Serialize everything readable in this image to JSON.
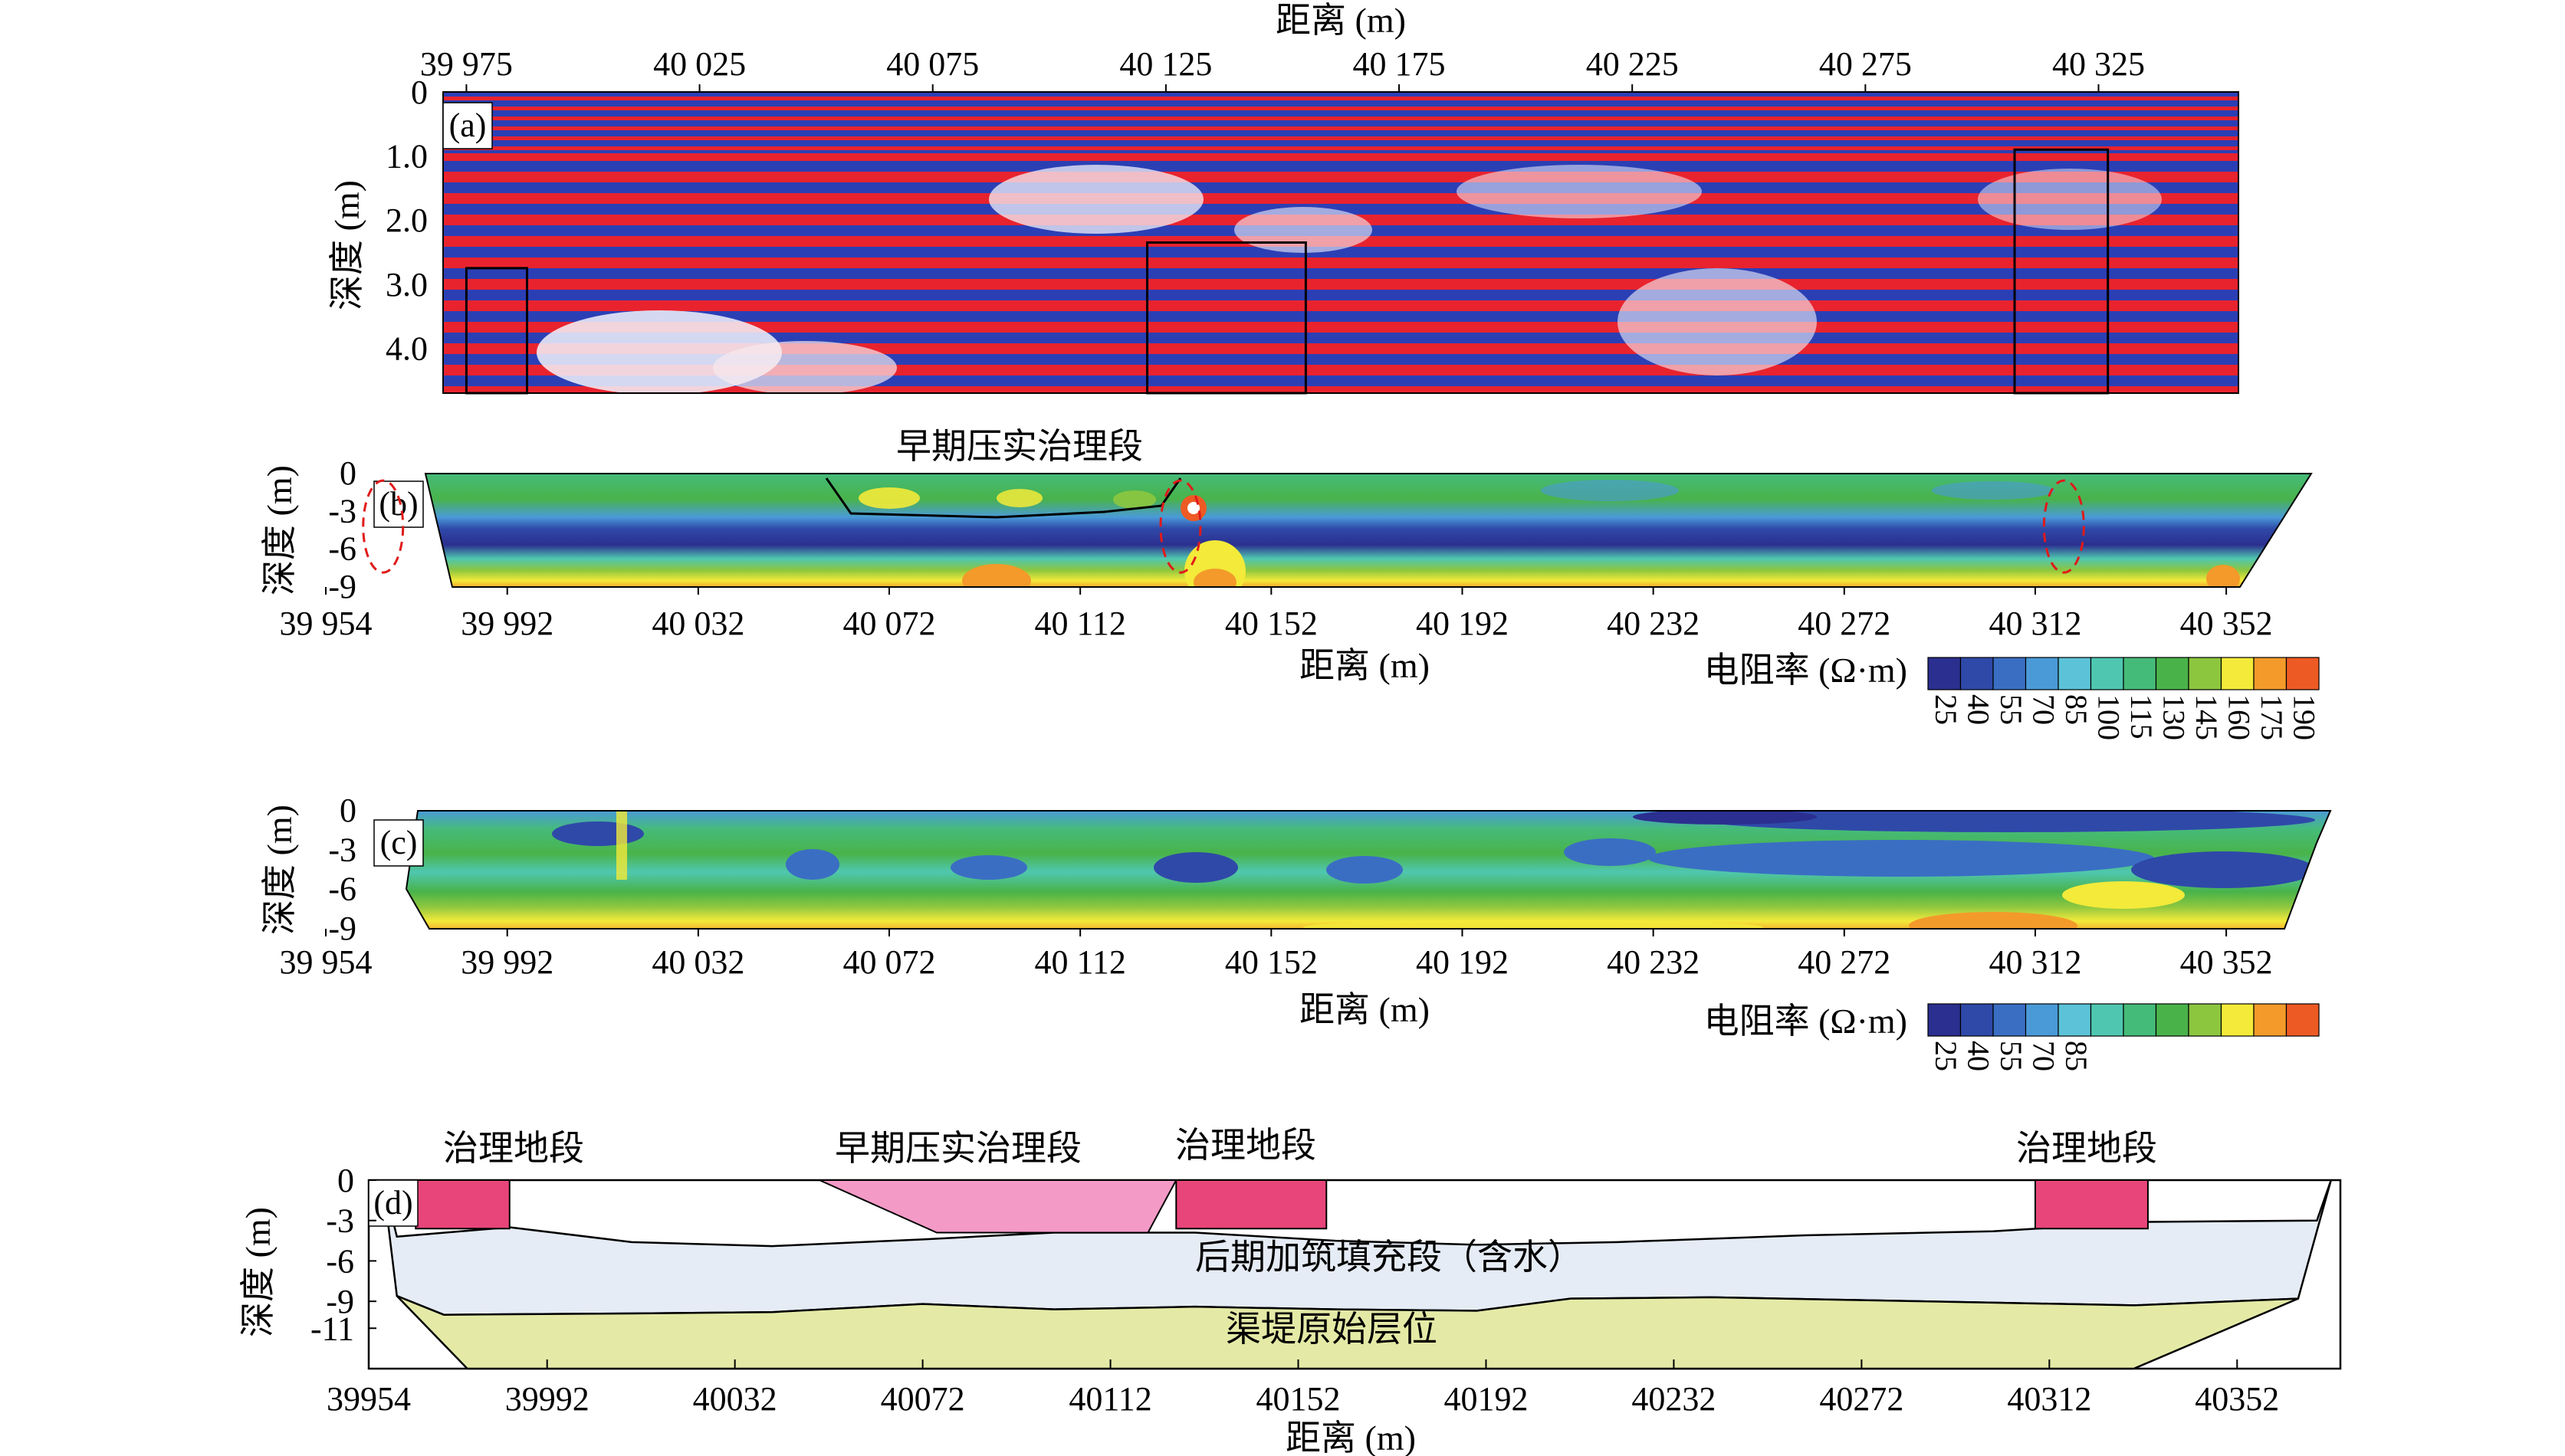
{
  "gpr": {
    "panel_label": "(a)",
    "x_title": "距离 (m)",
    "y_title": "深度 (m)",
    "x_ticks": [
      "39 975",
      "40 025",
      "40 075",
      "40 125",
      "40 175",
      "40 225",
      "40 275",
      "40 325"
    ],
    "x_tick_values": [
      39975,
      40025,
      40075,
      40125,
      40175,
      40225,
      40275,
      40325
    ],
    "y_ticks": [
      "0",
      "1.0",
      "2.0",
      "3.0",
      "4.0"
    ],
    "y_tick_values": [
      0,
      1,
      2,
      3,
      4
    ],
    "xlim": [
      39970,
      40355
    ],
    "ylim": [
      0,
      4.7
    ],
    "colors": {
      "positive": "#e8232e",
      "negative": "#2b3fb5"
    },
    "anomaly_boxes": [
      {
        "x0": 39975,
        "x1": 39988,
        "y0": 2.75,
        "y1": 4.7
      },
      {
        "x0": 40121,
        "x1": 40155,
        "y0": 2.35,
        "y1": 4.7
      },
      {
        "x0": 40307,
        "x1": 40327,
        "y0": 0.9,
        "y1": 4.7
      }
    ]
  },
  "ert1": {
    "panel_label": "(b)",
    "annotation": "早期压实治理段",
    "x_title": "距离 (m)",
    "y_title": "深度 (m)",
    "x_ticks": [
      "39 954",
      "39 992",
      "40 032",
      "40 072",
      "40 112",
      "40 152",
      "40 192",
      "40 232",
      "40 272",
      "40 312",
      "40 352"
    ],
    "x_tick_values": [
      39954,
      39992,
      40032,
      40072,
      40112,
      40152,
      40192,
      40232,
      40272,
      40312,
      40352
    ],
    "y_ticks": [
      "0",
      "-3",
      "-6",
      "-9"
    ],
    "y_tick_values": [
      0,
      -3,
      -6,
      -9
    ],
    "xlim": [
      39954,
      40369
    ],
    "ylim": [
      -9,
      0
    ],
    "colorbar_title": "电阻率 (Ω·m)",
    "colorbar_labels": [
      "25",
      "40",
      "55",
      "70",
      "85",
      "100",
      "115",
      "130",
      "145",
      "160",
      "175",
      "190"
    ],
    "colorbar_colors": [
      "#2b2f8f",
      "#2f49a8",
      "#3a6ec3",
      "#4a9ad8",
      "#5cc2d8",
      "#4fc7b0",
      "#45bb7a",
      "#49b34a",
      "#8cc63f",
      "#f3ea3a",
      "#f39a2a",
      "#ee5a24"
    ],
    "ellipses": [
      {
        "x": 39966,
        "y": -4.2
      },
      {
        "x": 40133,
        "y": -4.2
      },
      {
        "x": 40318,
        "y": -4.2
      }
    ]
  },
  "ert2": {
    "panel_label": "(c)",
    "x_title": "距离 (m)",
    "y_title": "深度 (m)",
    "x_ticks": [
      "39 954",
      "39 992",
      "40 032",
      "40 072",
      "40 112",
      "40 152",
      "40 192",
      "40 232",
      "40 272",
      "40 312",
      "40 352"
    ],
    "x_tick_values": [
      39954,
      39992,
      40032,
      40072,
      40112,
      40152,
      40192,
      40232,
      40272,
      40312,
      40352
    ],
    "y_ticks": [
      "0",
      "-3",
      "-6",
      "-9"
    ],
    "y_tick_values": [
      0,
      -3,
      -6,
      -9
    ],
    "xlim": [
      39954,
      40369
    ],
    "ylim": [
      -9,
      0
    ],
    "colorbar_title": "电阻率 (Ω·m)",
    "colorbar_labels": [
      "25",
      "40",
      "55",
      "70",
      "85"
    ],
    "colorbar_colors": [
      "#2b2f8f",
      "#2f49a8",
      "#3a6ec3",
      "#4a9ad8",
      "#5cc2d8",
      "#4fc7b0",
      "#45bb7a",
      "#49b34a",
      "#8cc63f",
      "#f3ea3a",
      "#f39a2a",
      "#ee5a24"
    ]
  },
  "interp": {
    "panel_label": "(d)",
    "x_title": "距离 (m)",
    "y_title": "深度 (m)",
    "x_ticks": [
      "39954",
      "39992",
      "40032",
      "40072",
      "40112",
      "40152",
      "40192",
      "40232",
      "40272",
      "40312",
      "40352"
    ],
    "x_tick_values": [
      39954,
      39992,
      40032,
      40072,
      40112,
      40152,
      40192,
      40232,
      40272,
      40312,
      40352
    ],
    "y_ticks": [
      "0",
      "-3",
      "-6",
      "-9",
      "-11"
    ],
    "y_tick_values": [
      0,
      -3,
      -6,
      -9,
      -11
    ],
    "xlim": [
      39954,
      40374
    ],
    "ylim": [
      -14,
      0
    ],
    "labels": {
      "treatment_1": "治理地段",
      "early": "早期压实治理段",
      "treatment_2": "治理地段",
      "treatment_3": "治理地段",
      "fill": "后期加筑填充段（含水）",
      "base": "渠堤原始层位"
    },
    "colors": {
      "treatment": "#e8457a",
      "early": "#f39ac7",
      "fill": "#e6ecf5",
      "base": "#e4eaa6"
    }
  },
  "chart_data": [
    {
      "type": "heatmap",
      "panel": "(a)",
      "xlabel": "距离 (m)",
      "ylabel": "深度 (m)",
      "xlim": [
        39970,
        40355
      ],
      "ylim": [
        0,
        4.7
      ],
      "x_ticks": [
        39975,
        40025,
        40075,
        40125,
        40175,
        40225,
        40275,
        40325
      ],
      "y_ticks": [
        0,
        1.0,
        2.0,
        3.0,
        4.0
      ],
      "anomaly_boxes_x": [
        [
          39975,
          39988
        ],
        [
          40121,
          40155
        ],
        [
          40307,
          40327
        ]
      ]
    },
    {
      "type": "heatmap",
      "panel": "(b)",
      "xlabel": "距离 (m)",
      "ylabel": "深度 (m)",
      "xlim": [
        39954,
        40369
      ],
      "ylim": [
        -9,
        0
      ],
      "colorbar": "电阻率 (Ω·m)",
      "colorbar_ticks": [
        25,
        40,
        55,
        70,
        85,
        100,
        115,
        130,
        145,
        160,
        175,
        190
      ]
    },
    {
      "type": "heatmap",
      "panel": "(c)",
      "xlabel": "距离 (m)",
      "ylabel": "深度 (m)",
      "xlim": [
        39954,
        40369
      ],
      "ylim": [
        -9,
        0
      ],
      "colorbar": "电阻率 (Ω·m)",
      "colorbar_ticks": [
        25,
        40,
        55,
        70,
        85
      ]
    },
    {
      "type": "area",
      "panel": "(d)",
      "xlabel": "距离 (m)",
      "ylabel": "深度 (m)",
      "xlim": [
        39954,
        40374
      ],
      "ylim": [
        -14,
        0
      ],
      "treatment_zones": [
        [
          39964,
          39984
        ],
        [
          40126,
          40158
        ],
        [
          40309,
          40333
        ]
      ],
      "early_zone": [
        40050,
        40126
      ],
      "upper_boundary": {
        "x": [
          39960,
          39984,
          40010,
          40040,
          40072,
          40100,
          40130,
          40160,
          40190,
          40220,
          40260,
          40300,
          40333,
          40369
        ],
        "y": [
          -4.2,
          -3.5,
          -4.6,
          -4.9,
          -4.4,
          -3.9,
          -3.9,
          -4.5,
          -4.8,
          -4.6,
          -4.1,
          -3.8,
          -3.1,
          -3.0
        ]
      },
      "lower_boundary": {
        "x": [
          39960,
          39970,
          40010,
          40040,
          40072,
          40100,
          40130,
          40160,
          40190,
          40210,
          40240,
          40270,
          40300,
          40330,
          40365
        ],
        "y": [
          -8.6,
          -10.0,
          -9.9,
          -9.8,
          -9.2,
          -9.6,
          -9.4,
          -9.6,
          -9.7,
          -8.8,
          -8.7,
          -8.9,
          -9.1,
          -9.3,
          -8.8
        ]
      }
    }
  ]
}
